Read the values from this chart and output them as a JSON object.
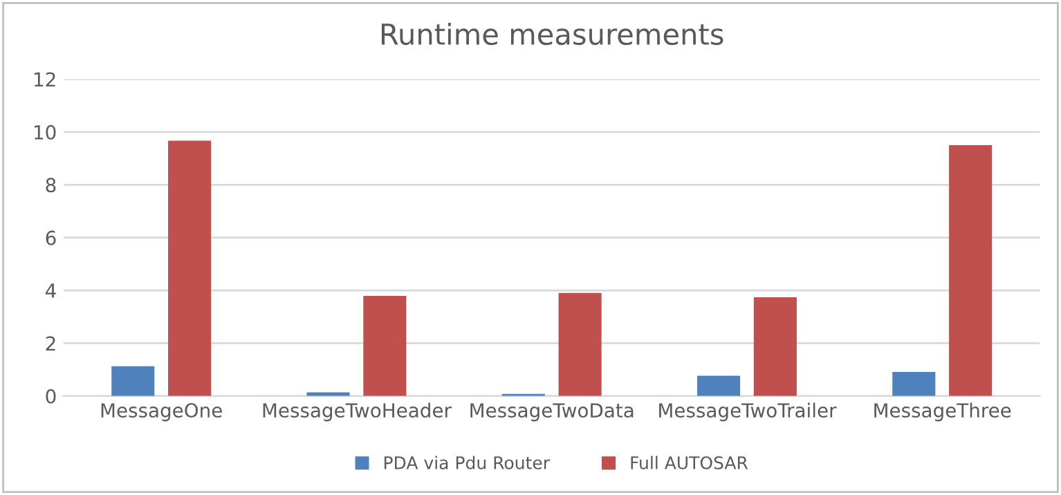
{
  "chart_data": {
    "type": "bar",
    "title": "Runtime measurements",
    "categories": [
      "MessageOne",
      "MessageTwoHeader",
      "MessageTwoData",
      "MessageTwoTrailer",
      "MessageThree"
    ],
    "series": [
      {
        "name": "PDA via Pdu Router",
        "color": "#4f81bd",
        "values": [
          1.13,
          0.14,
          0.08,
          0.77,
          0.91
        ]
      },
      {
        "name": "Full AUTOSAR",
        "color": "#c0504d",
        "values": [
          9.67,
          3.79,
          3.9,
          3.74,
          9.5
        ]
      }
    ],
    "ylim": [
      0,
      12
    ],
    "yticks": [
      0,
      2,
      4,
      6,
      8,
      10,
      12
    ],
    "grid": "y",
    "legend": "bottom"
  }
}
